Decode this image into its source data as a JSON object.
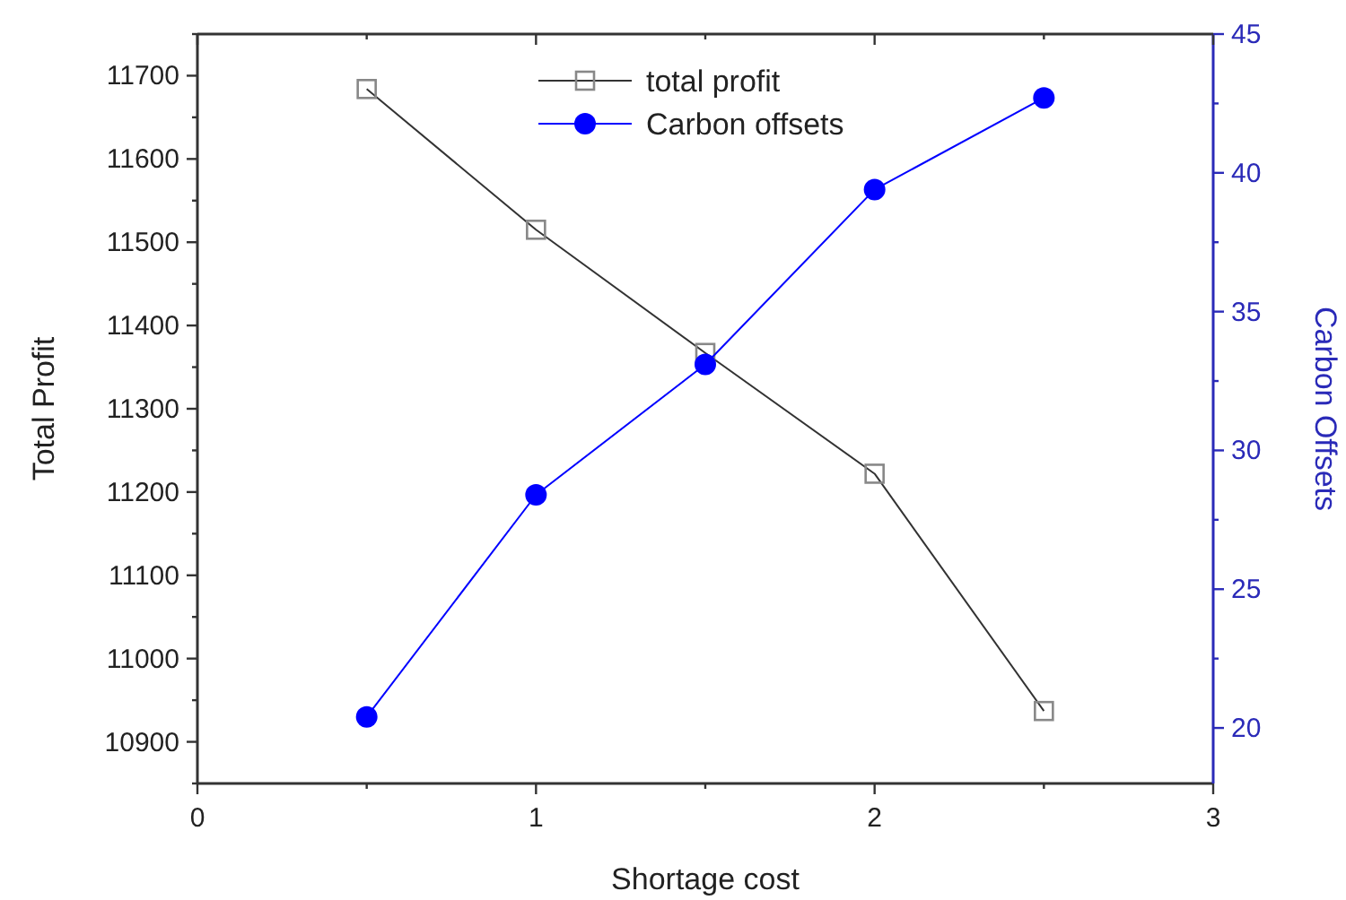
{
  "chart_data": {
    "type": "line",
    "xlabel": "Shortage cost",
    "ylabel": "Total Profit",
    "y2label": "Carbon Offsets",
    "x": [
      0.5,
      1,
      1.5,
      2,
      2.5
    ],
    "series": [
      {
        "name": "total profit",
        "color": "#333333",
        "marker": "square",
        "values": [
          11684,
          11515,
          11367,
          11222,
          10937
        ]
      },
      {
        "name": "Carbon offsets",
        "color": "#0000ff",
        "marker": "circle",
        "axis": "y2",
        "values": [
          20.4,
          28.4,
          33.1,
          39.4,
          42.7
        ]
      }
    ],
    "xlim": [
      0,
      3
    ],
    "xticks": [
      0,
      {
        "value": 0.5,
        "label": null
      },
      1,
      {
        "value": 1.5,
        "label": null
      },
      2,
      {
        "value": 2.5,
        "label": null
      },
      3
    ],
    "ylim": [
      10850,
      11750
    ],
    "yticks": [
      {
        "value": 10850,
        "label": null
      },
      10900,
      {
        "value": 10950,
        "label": null
      },
      11000,
      {
        "value": 11050,
        "label": null
      },
      11100,
      {
        "value": 11150,
        "label": null
      },
      11200,
      {
        "value": 11250,
        "label": null
      },
      11300,
      {
        "value": 11350,
        "label": null
      },
      11400,
      {
        "value": 11450,
        "label": null
      },
      11500,
      {
        "value": 11550,
        "label": null
      },
      11600,
      {
        "value": 11650,
        "label": null
      },
      11700,
      {
        "value": 11750,
        "label": null
      }
    ],
    "y2lim": [
      18,
      45
    ],
    "y2ticks": [
      20,
      {
        "value": 22.5,
        "label": null
      },
      25,
      {
        "value": 27.5,
        "label": null
      },
      30,
      {
        "value": 32.5,
        "label": null
      },
      35,
      {
        "value": 37.5,
        "label": null
      },
      40,
      {
        "value": 42.5,
        "label": null
      },
      45
    ],
    "legend": "top",
    "grid": false
  }
}
